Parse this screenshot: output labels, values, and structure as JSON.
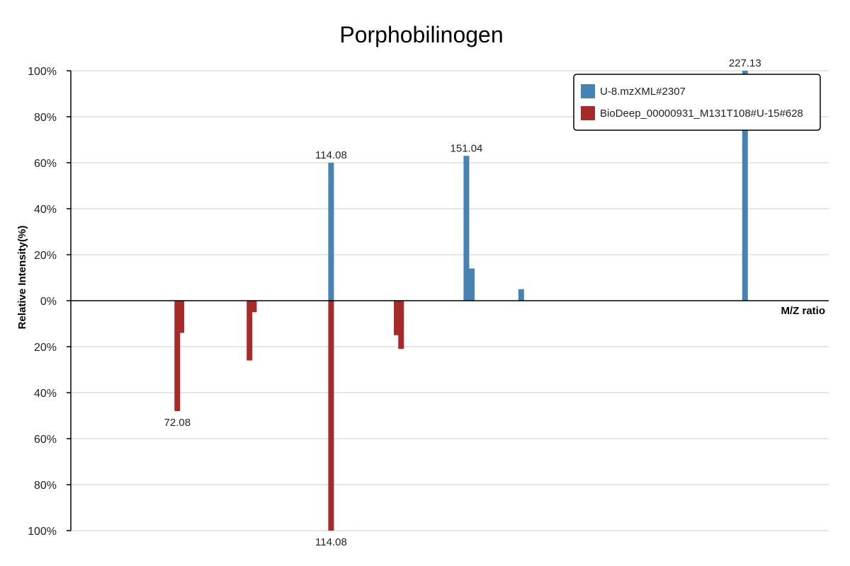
{
  "chart_data": {
    "type": "bar",
    "title": "Porphobilinogen",
    "xlabel": "M/Z ratio",
    "ylabel": "Relative Intensity(%)",
    "ylim": [
      -100,
      100
    ],
    "y_ticks": [
      {
        "value": 100,
        "label": "100%"
      },
      {
        "value": 80,
        "label": "80%"
      },
      {
        "value": 60,
        "label": "60%"
      },
      {
        "value": 40,
        "label": "40%"
      },
      {
        "value": 20,
        "label": "20%"
      },
      {
        "value": 0,
        "label": "0%"
      },
      {
        "value": -20,
        "label": "20%"
      },
      {
        "value": -40,
        "label": "40%"
      },
      {
        "value": -60,
        "label": "60%"
      },
      {
        "value": -80,
        "label": "80%"
      },
      {
        "value": -100,
        "label": "100%"
      }
    ],
    "grid": true,
    "legend_position": "top-right",
    "series": [
      {
        "name": "U-8.mzXML#2307",
        "color": "#4682b4",
        "direction": "up",
        "peaks": [
          {
            "mz": 114.08,
            "intensity": 60,
            "label": "114.08"
          },
          {
            "mz": 151.04,
            "intensity": 63,
            "label": "151.04"
          },
          {
            "mz": 152.5,
            "intensity": 14
          },
          {
            "mz": 166.0,
            "intensity": 5
          },
          {
            "mz": 227.13,
            "intensity": 100,
            "label": "227.13"
          }
        ]
      },
      {
        "name": "BioDeep_00000931_M131T108#U-15#628",
        "color": "#a52a2a",
        "direction": "down",
        "peaks": [
          {
            "mz": 72.08,
            "intensity": 48,
            "label": "72.08"
          },
          {
            "mz": 73.2,
            "intensity": 14
          },
          {
            "mz": 91.8,
            "intensity": 26
          },
          {
            "mz": 93.0,
            "intensity": 5
          },
          {
            "mz": 114.08,
            "intensity": 100,
            "label": "114.08"
          },
          {
            "mz": 132.0,
            "intensity": 15
          },
          {
            "mz": 133.2,
            "intensity": 21
          }
        ]
      }
    ]
  }
}
